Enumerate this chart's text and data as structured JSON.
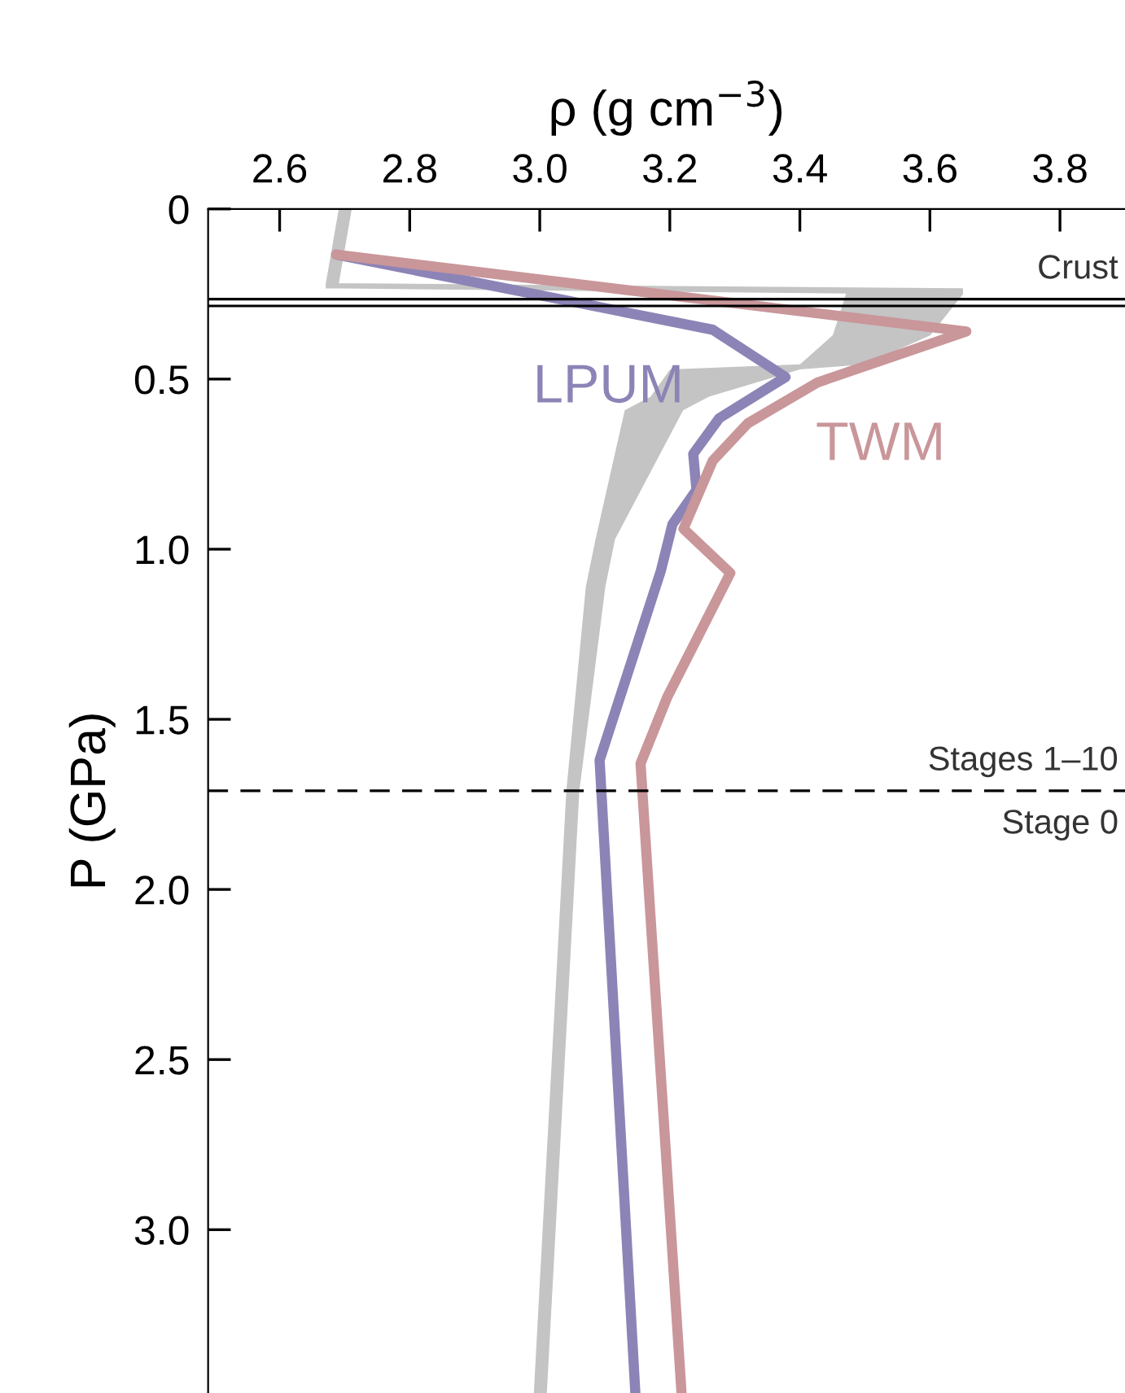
{
  "chart_data": {
    "type": "line",
    "orientation": "horizontal",
    "xlabel": "ρ (g cm$^{−3}$)",
    "ylabel": "P (GPa)",
    "xlim": [
      2.49,
      3.9
    ],
    "xticks": [
      2.6,
      2.8,
      {
        "value": 3.0,
        "label": "3.0"
      },
      3.2,
      3.4,
      3.6,
      3.8
    ],
    "ylim": [
      3.48,
      0
    ],
    "yticks": [
      0,
      0.5,
      {
        "value": 1.0,
        "label": "1.0"
      },
      1.5,
      {
        "value": 2.0,
        "label": "2.0"
      },
      2.5,
      {
        "value": 3.0,
        "label": "3.0"
      }
    ],
    "series": [
      {
        "type": "area",
        "color": "#c4c4c4",
        "x": [
          0,
          0.22,
          0.235,
          0.25,
          0.37,
          0.455,
          0.47,
          0.55,
          0.59,
          0.97,
          1.11,
          1.71,
          3.48
        ],
        "values": [
          2.71,
          2.69,
          3.65,
          3.65,
          3.6,
          3.5,
          3.4,
          3.26,
          3.22,
          3.115,
          3.1,
          3.06,
          3.01
        ]
      },
      {
        "type": "area",
        "color": "#ffffff",
        "x": [
          0,
          0.22,
          0.235,
          0.25,
          0.37,
          0.455,
          0.47,
          0.55,
          0.59,
          0.97,
          1.11,
          1.71,
          3.48
        ],
        "values": [
          2.69,
          2.67,
          2.67,
          3.47,
          3.45,
          3.4,
          3.2,
          3.17,
          3.13,
          3.085,
          3.07,
          3.04,
          2.99
        ]
      },
      {
        "name": "LPUM",
        "color": "#8c84b6",
        "x": [
          0.134,
          0.355,
          0.494,
          0.615,
          0.72,
          0.826,
          0.927,
          1.065,
          1.62,
          3.48
        ],
        "values": [
          2.687,
          3.266,
          3.378,
          3.276,
          3.236,
          3.241,
          3.204,
          3.186,
          3.092,
          3.147
        ]
      },
      {
        "name": "TWM",
        "color": "#c9969a",
        "x": [
          0.134,
          0.36,
          0.51,
          0.63,
          0.74,
          0.94,
          1.07,
          1.435,
          1.63,
          3.48
        ],
        "values": [
          2.687,
          3.656,
          3.427,
          3.32,
          3.266,
          3.221,
          3.293,
          3.196,
          3.155,
          3.218
        ]
      }
    ],
    "ref_lines": [
      {
        "axis": "y",
        "value": 0.265,
        "label": "Crust",
        "color": "#000000",
        "line_style": "solid"
      },
      {
        "axis": "y",
        "value": 0.285,
        "color": "#000000",
        "line_style": "solid"
      },
      {
        "axis": "y",
        "value": 1.71,
        "label": "Stages 1–10",
        "color": "#000000",
        "line_style": "dashed"
      }
    ],
    "annotations": [
      {
        "text": "Stage 0",
        "x": 3.89,
        "y": 1.71
      }
    ]
  }
}
